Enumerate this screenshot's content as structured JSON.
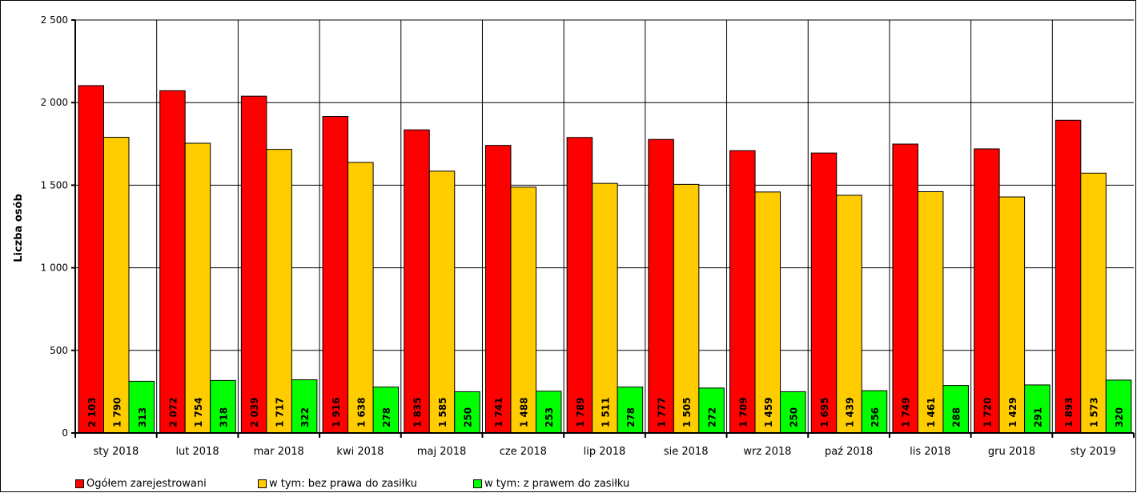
{
  "chart_data": {
    "type": "bar",
    "title": "",
    "xlabel": "",
    "ylabel": "Liczba osób",
    "ylim": [
      0,
      2500
    ],
    "yticks": [
      0,
      500,
      1000,
      1500,
      2000,
      2500
    ],
    "ytick_labels": [
      "0",
      "500",
      "1 000",
      "1 500",
      "2 000",
      "2 500"
    ],
    "grid": true,
    "legend_position": "bottom-left",
    "categories": [
      "sty 2018",
      "lut 2018",
      "mar 2018",
      "kwi 2018",
      "maj 2018",
      "cze 2018",
      "lip 2018",
      "sie 2018",
      "wrz 2018",
      "paź 2018",
      "lis 2018",
      "gru 2018",
      "sty 2019"
    ],
    "series": [
      {
        "name": "Ogółem zarejestrowani",
        "color": "#ff0000",
        "values": [
          2103,
          2072,
          2039,
          1916,
          1835,
          1741,
          1789,
          1777,
          1709,
          1695,
          1749,
          1720,
          1893
        ],
        "labels": [
          "2 103",
          "2 072",
          "2 039",
          "1 916",
          "1 835",
          "1 741",
          "1 789",
          "1 777",
          "1 709",
          "1 695",
          "1 749",
          "1 720",
          "1 893"
        ]
      },
      {
        "name": "w tym: bez prawa do zasiłku",
        "color": "#ffcc00",
        "values": [
          1790,
          1754,
          1717,
          1638,
          1585,
          1488,
          1511,
          1505,
          1459,
          1439,
          1461,
          1429,
          1573
        ],
        "labels": [
          "1 790",
          "1 754",
          "1 717",
          "1 638",
          "1 585",
          "1 488",
          "1 511",
          "1 505",
          "1 459",
          "1 439",
          "1 461",
          "1 429",
          "1 573"
        ]
      },
      {
        "name": "w tym: z prawem do zasiłku",
        "color": "#00ff00",
        "values": [
          313,
          318,
          322,
          278,
          250,
          253,
          278,
          272,
          250,
          256,
          288,
          291,
          320
        ],
        "labels": [
          "313",
          "318",
          "322",
          "278",
          "250",
          "253",
          "278",
          "272",
          "250",
          "256",
          "288",
          "291",
          "320"
        ]
      }
    ]
  }
}
